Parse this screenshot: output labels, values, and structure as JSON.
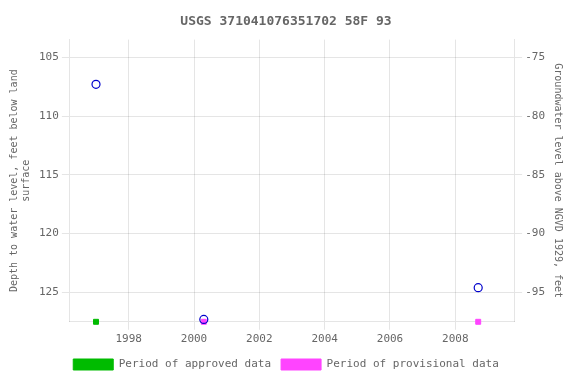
{
  "chart_data": {
    "type": "scatter",
    "title": "USGS 371041076351702 58F 93",
    "ylabel": "Depth to water level, feet below land\nsurface",
    "y2label": "Groundwater level above NGVD 1929, feet",
    "xlim": [
      1996.2,
      2009.8
    ],
    "xticks": [
      1998,
      2000,
      2002,
      2004,
      2006,
      2008
    ],
    "ylim": [
      127.5,
      103.5
    ],
    "yticks": [
      105,
      110,
      115,
      120,
      125
    ],
    "y2lim": [
      -97.5,
      -73.5
    ],
    "y2ticks": [
      -75,
      -80,
      -85,
      -90,
      -95
    ],
    "grid": true,
    "legend": "bottom",
    "series": [
      {
        "color": "#0000cc",
        "marker": "open_circle",
        "x": [
          1997.0,
          2000.3,
          2008.7
        ],
        "values": [
          107.3,
          127.3,
          124.6
        ]
      },
      {
        "name": "Period of approved data",
        "color": "#00bb00",
        "marker": "square",
        "x": [
          1997.0
        ],
        "values": [
          127.5
        ]
      },
      {
        "name": "Period of provisional data",
        "color": "#ff44ff",
        "marker": "square",
        "x": [
          2000.3,
          2008.7
        ],
        "values": [
          127.5,
          127.5
        ]
      }
    ]
  }
}
